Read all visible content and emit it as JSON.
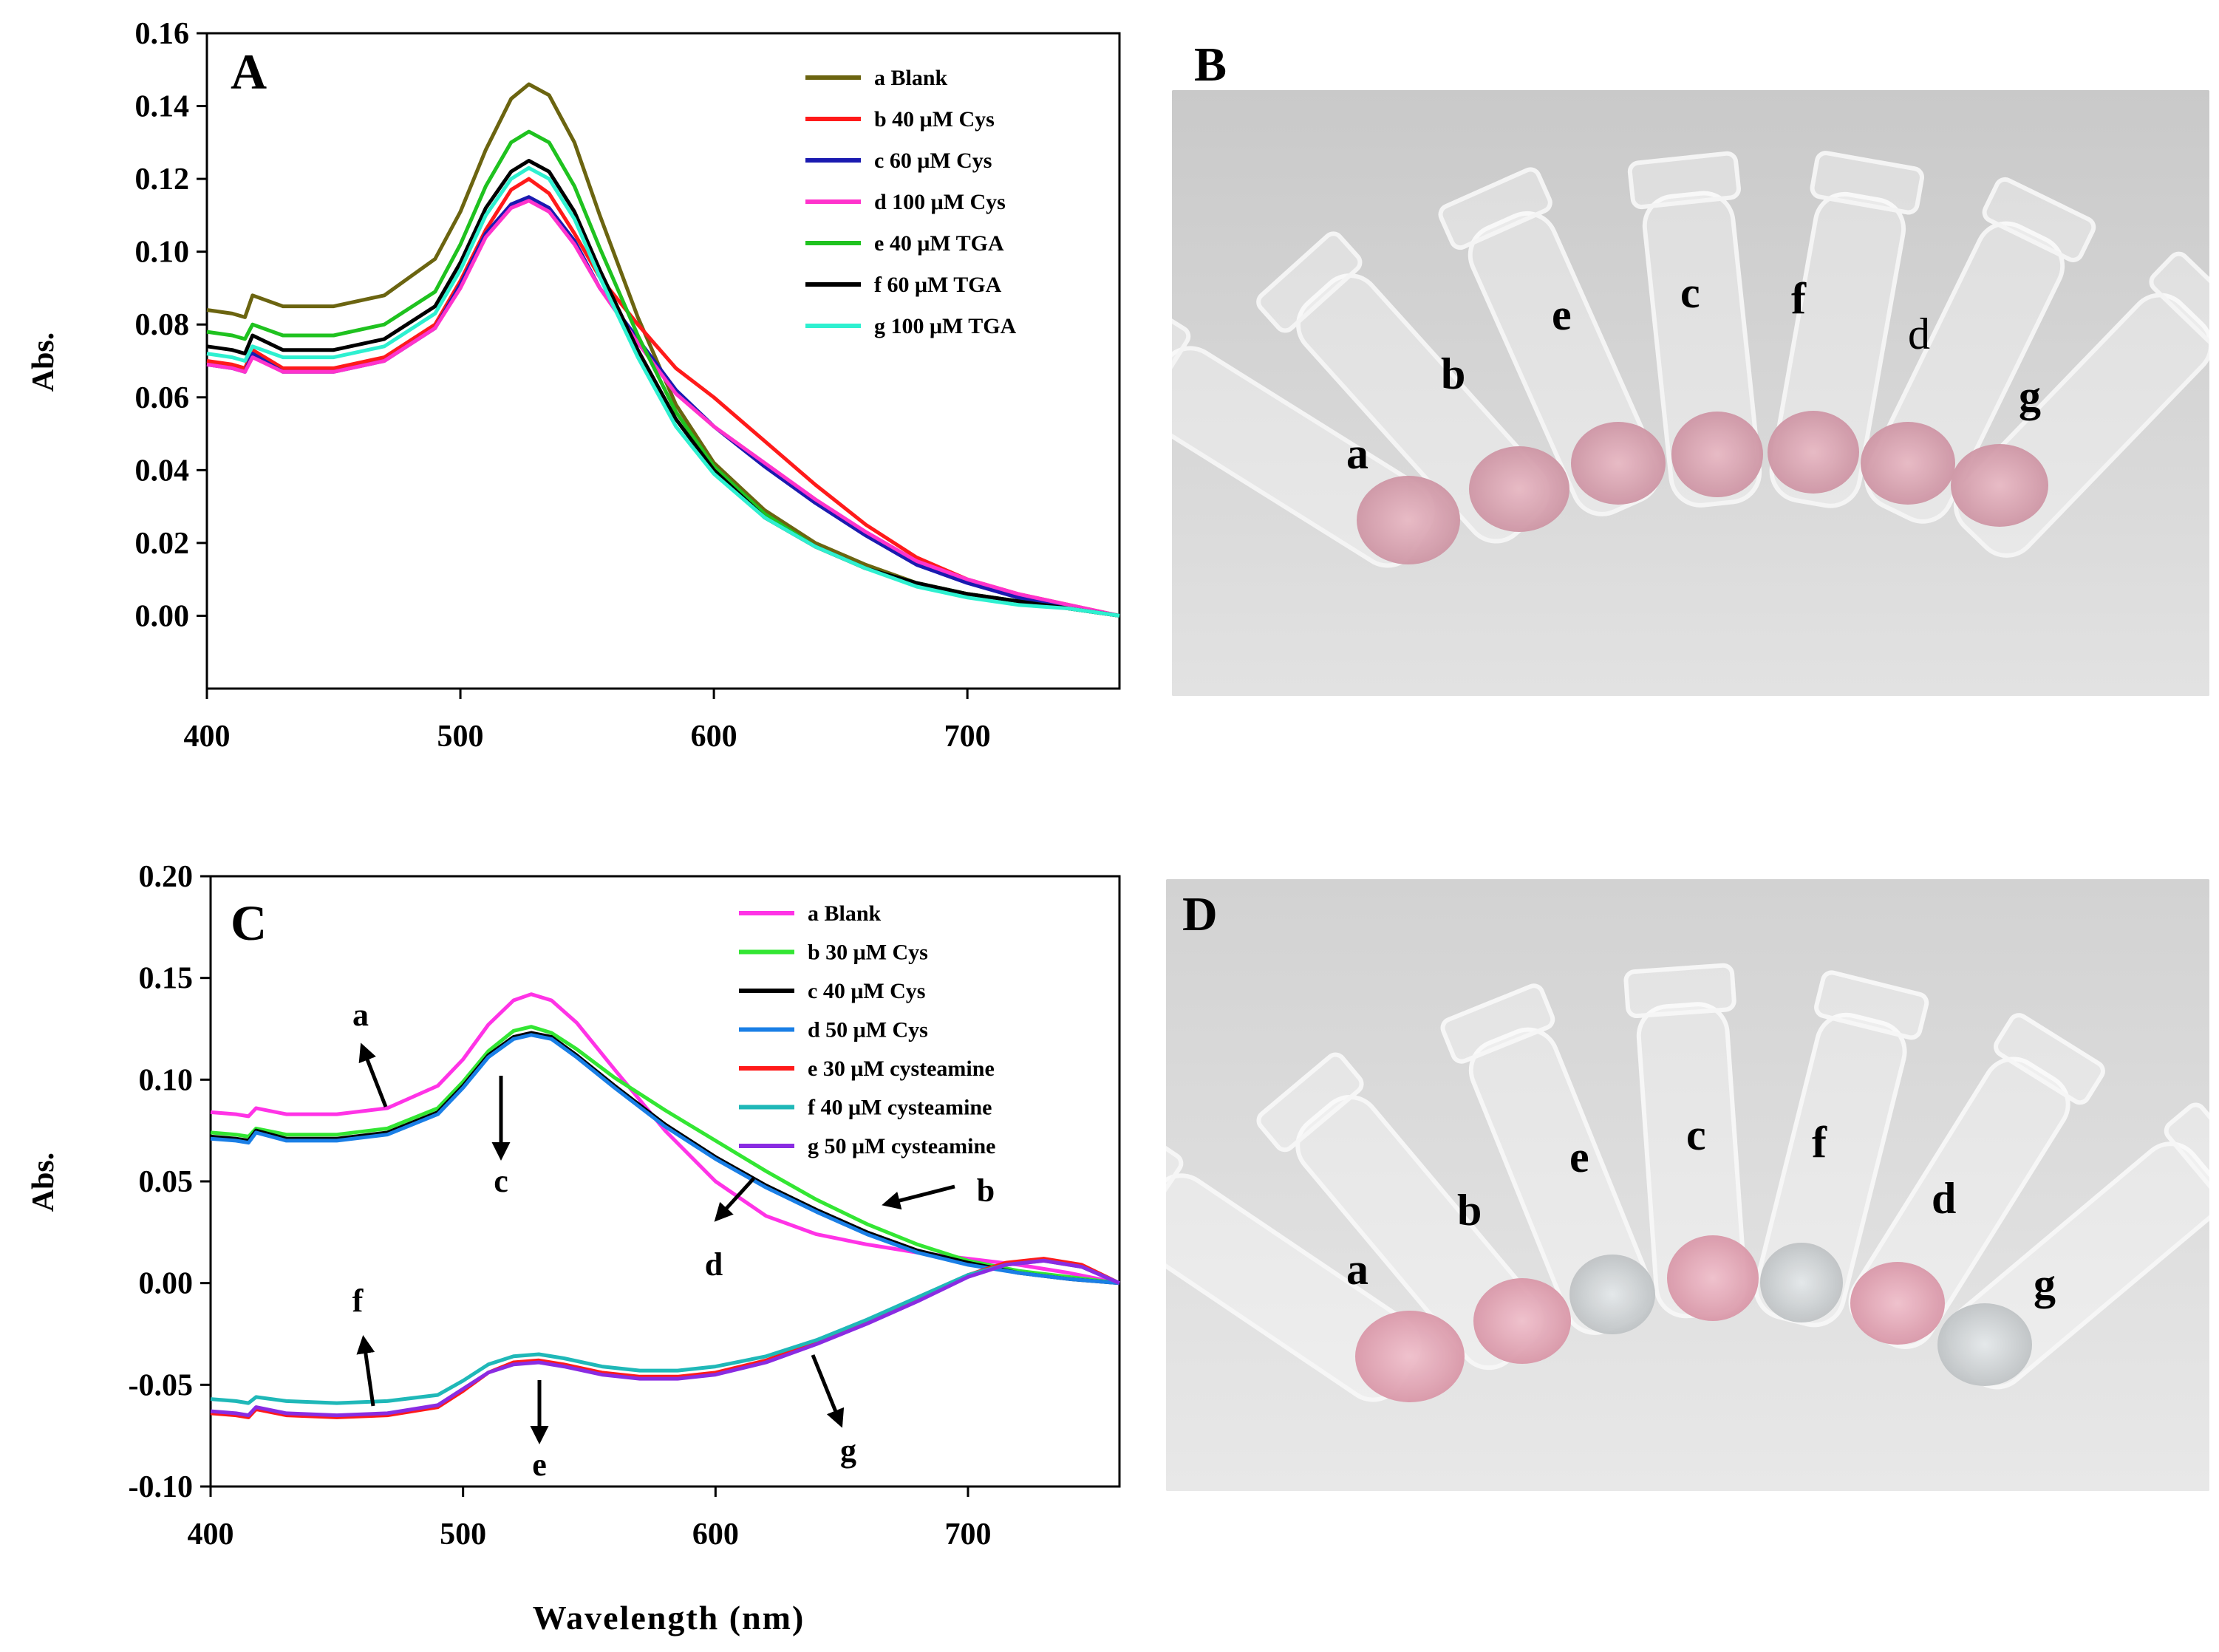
{
  "chart_data": [
    {
      "panel": "A",
      "type": "line",
      "xlabel": "",
      "ylabel": "Abs.",
      "xlim": [
        400,
        760
      ],
      "ylim": [
        -0.02,
        0.16
      ],
      "xticks": [
        400,
        500,
        600,
        700
      ],
      "yticks": [
        0.0,
        0.02,
        0.04,
        0.06,
        0.08,
        0.1,
        0.12,
        0.14,
        0.16
      ],
      "legend": "top-right",
      "series": [
        {
          "name": "a Blank",
          "color": "#6b6410",
          "x": [
            400,
            410,
            415,
            418,
            430,
            450,
            470,
            490,
            500,
            510,
            520,
            527,
            535,
            545,
            555,
            570,
            585,
            600,
            620,
            640,
            660,
            680,
            700,
            720,
            740,
            760
          ],
          "y": [
            0.084,
            0.083,
            0.082,
            0.088,
            0.085,
            0.085,
            0.088,
            0.098,
            0.111,
            0.128,
            0.142,
            0.146,
            0.143,
            0.13,
            0.11,
            0.082,
            0.058,
            0.042,
            0.029,
            0.02,
            0.014,
            0.009,
            0.006,
            0.004,
            0.002,
            0.0
          ]
        },
        {
          "name": "b 40 μM Cys",
          "color": "#ff1a1a",
          "x": [
            400,
            410,
            415,
            418,
            430,
            450,
            470,
            490,
            500,
            510,
            520,
            527,
            535,
            545,
            555,
            570,
            585,
            600,
            620,
            640,
            660,
            680,
            700,
            720,
            740,
            760
          ],
          "y": [
            0.07,
            0.069,
            0.068,
            0.073,
            0.068,
            0.068,
            0.071,
            0.08,
            0.092,
            0.106,
            0.117,
            0.12,
            0.116,
            0.105,
            0.093,
            0.08,
            0.068,
            0.06,
            0.048,
            0.036,
            0.025,
            0.016,
            0.01,
            0.006,
            0.003,
            0.0
          ]
        },
        {
          "name": "c 60 μM Cys",
          "color": "#1a1ab0",
          "x": [
            400,
            410,
            415,
            418,
            430,
            450,
            470,
            490,
            500,
            510,
            520,
            527,
            535,
            545,
            555,
            570,
            585,
            600,
            620,
            640,
            660,
            680,
            700,
            720,
            740,
            760
          ],
          "y": [
            0.069,
            0.068,
            0.067,
            0.072,
            0.067,
            0.067,
            0.07,
            0.079,
            0.091,
            0.105,
            0.113,
            0.115,
            0.112,
            0.103,
            0.09,
            0.076,
            0.062,
            0.052,
            0.041,
            0.031,
            0.022,
            0.014,
            0.009,
            0.005,
            0.002,
            0.0
          ]
        },
        {
          "name": "d 100 μM Cys",
          "color": "#ff33cc",
          "x": [
            400,
            410,
            415,
            418,
            430,
            450,
            470,
            490,
            500,
            510,
            520,
            527,
            535,
            545,
            555,
            570,
            585,
            600,
            620,
            640,
            660,
            680,
            700,
            720,
            740,
            760
          ],
          "y": [
            0.069,
            0.068,
            0.067,
            0.071,
            0.067,
            0.067,
            0.07,
            0.079,
            0.09,
            0.104,
            0.112,
            0.114,
            0.111,
            0.102,
            0.09,
            0.075,
            0.061,
            0.052,
            0.042,
            0.032,
            0.023,
            0.015,
            0.01,
            0.006,
            0.003,
            0.0
          ]
        },
        {
          "name": "e 40 μM TGA",
          "color": "#1fc21f",
          "x": [
            400,
            410,
            415,
            418,
            430,
            450,
            470,
            490,
            500,
            510,
            520,
            527,
            535,
            545,
            555,
            570,
            585,
            600,
            620,
            640,
            660,
            680,
            700,
            720,
            740,
            760
          ],
          "y": [
            0.078,
            0.077,
            0.076,
            0.08,
            0.077,
            0.077,
            0.08,
            0.089,
            0.102,
            0.118,
            0.13,
            0.133,
            0.13,
            0.118,
            0.101,
            0.077,
            0.056,
            0.041,
            0.028,
            0.019,
            0.013,
            0.009,
            0.006,
            0.004,
            0.002,
            0.0
          ]
        },
        {
          "name": "f 60 μM TGA",
          "color": "#000000",
          "x": [
            400,
            410,
            415,
            418,
            430,
            450,
            470,
            490,
            500,
            510,
            520,
            527,
            535,
            545,
            555,
            570,
            585,
            600,
            620,
            640,
            660,
            680,
            700,
            720,
            740,
            760
          ],
          "y": [
            0.074,
            0.073,
            0.072,
            0.077,
            0.073,
            0.073,
            0.076,
            0.085,
            0.097,
            0.112,
            0.122,
            0.125,
            0.122,
            0.111,
            0.095,
            0.073,
            0.054,
            0.04,
            0.027,
            0.019,
            0.013,
            0.009,
            0.006,
            0.004,
            0.002,
            0.0
          ]
        },
        {
          "name": "g 100 μM TGA",
          "color": "#2ef0d0",
          "x": [
            400,
            410,
            415,
            418,
            430,
            450,
            470,
            490,
            500,
            510,
            520,
            527,
            535,
            545,
            555,
            570,
            585,
            600,
            620,
            640,
            660,
            680,
            700,
            720,
            740,
            760
          ],
          "y": [
            0.072,
            0.071,
            0.07,
            0.074,
            0.071,
            0.071,
            0.074,
            0.083,
            0.095,
            0.11,
            0.12,
            0.123,
            0.12,
            0.109,
            0.093,
            0.071,
            0.052,
            0.039,
            0.027,
            0.019,
            0.013,
            0.008,
            0.005,
            0.003,
            0.002,
            0.0
          ]
        }
      ]
    },
    {
      "panel": "C",
      "type": "line",
      "xlabel": "Wavelength (nm)",
      "ylabel": "Abs.",
      "xlim": [
        400,
        760
      ],
      "ylim": [
        -0.1,
        0.2
      ],
      "xticks": [
        400,
        500,
        600,
        700
      ],
      "yticks": [
        -0.1,
        -0.05,
        0.0,
        0.05,
        0.1,
        0.15,
        0.2
      ],
      "legend": "top-right",
      "series": [
        {
          "name": "a Blank",
          "color": "#ff33e6",
          "x": [
            400,
            410,
            415,
            418,
            430,
            450,
            470,
            490,
            500,
            510,
            520,
            527,
            535,
            545,
            560,
            580,
            600,
            620,
            640,
            660,
            680,
            700,
            720,
            740,
            760
          ],
          "y": [
            0.084,
            0.083,
            0.082,
            0.086,
            0.083,
            0.083,
            0.086,
            0.097,
            0.11,
            0.127,
            0.139,
            0.142,
            0.139,
            0.128,
            0.105,
            0.075,
            0.05,
            0.033,
            0.024,
            0.019,
            0.015,
            0.012,
            0.009,
            0.005,
            0.0
          ]
        },
        {
          "name": "b 30 μM Cys",
          "color": "#33e633",
          "x": [
            400,
            410,
            415,
            418,
            430,
            450,
            470,
            490,
            500,
            510,
            520,
            527,
            535,
            545,
            560,
            580,
            600,
            620,
            640,
            660,
            680,
            700,
            720,
            740,
            760
          ],
          "y": [
            0.074,
            0.073,
            0.072,
            0.076,
            0.073,
            0.073,
            0.076,
            0.086,
            0.099,
            0.114,
            0.124,
            0.126,
            0.123,
            0.115,
            0.101,
            0.085,
            0.07,
            0.055,
            0.041,
            0.029,
            0.019,
            0.011,
            0.006,
            0.003,
            0.0
          ]
        },
        {
          "name": "c 40 μM Cys",
          "color": "#000000",
          "x": [
            400,
            410,
            415,
            418,
            430,
            450,
            470,
            490,
            500,
            510,
            520,
            527,
            535,
            545,
            560,
            580,
            600,
            620,
            640,
            660,
            680,
            700,
            720,
            740,
            760
          ],
          "y": [
            0.072,
            0.071,
            0.07,
            0.075,
            0.071,
            0.071,
            0.074,
            0.084,
            0.097,
            0.112,
            0.121,
            0.123,
            0.121,
            0.112,
            0.097,
            0.078,
            0.062,
            0.048,
            0.036,
            0.025,
            0.016,
            0.01,
            0.005,
            0.002,
            0.0
          ]
        },
        {
          "name": "d 50 μM Cys",
          "color": "#1a7fe6",
          "x": [
            400,
            410,
            415,
            418,
            430,
            450,
            470,
            490,
            500,
            510,
            520,
            527,
            535,
            545,
            560,
            580,
            600,
            620,
            640,
            660,
            680,
            700,
            720,
            740,
            760
          ],
          "y": [
            0.071,
            0.07,
            0.069,
            0.074,
            0.07,
            0.07,
            0.073,
            0.083,
            0.096,
            0.111,
            0.12,
            0.122,
            0.12,
            0.111,
            0.096,
            0.077,
            0.061,
            0.047,
            0.035,
            0.024,
            0.015,
            0.009,
            0.005,
            0.002,
            0.0
          ]
        },
        {
          "name": "e 30 μM cysteamine",
          "color": "#ff1a1a",
          "x": [
            400,
            410,
            415,
            418,
            430,
            450,
            470,
            490,
            500,
            510,
            520,
            530,
            540,
            555,
            570,
            585,
            600,
            620,
            640,
            660,
            680,
            700,
            715,
            730,
            745,
            760
          ],
          "y": [
            -0.064,
            -0.065,
            -0.066,
            -0.062,
            -0.065,
            -0.066,
            -0.065,
            -0.061,
            -0.053,
            -0.044,
            -0.039,
            -0.038,
            -0.04,
            -0.044,
            -0.046,
            -0.046,
            -0.044,
            -0.038,
            -0.029,
            -0.019,
            -0.008,
            0.004,
            0.01,
            0.012,
            0.009,
            0.0
          ]
        },
        {
          "name": "f 40 μM cysteamine",
          "color": "#1fb8b8",
          "x": [
            400,
            410,
            415,
            418,
            430,
            450,
            470,
            490,
            500,
            510,
            520,
            530,
            540,
            555,
            570,
            585,
            600,
            620,
            640,
            660,
            680,
            700,
            715,
            730,
            745,
            760
          ],
          "y": [
            -0.057,
            -0.058,
            -0.059,
            -0.056,
            -0.058,
            -0.059,
            -0.058,
            -0.055,
            -0.048,
            -0.04,
            -0.036,
            -0.035,
            -0.037,
            -0.041,
            -0.043,
            -0.043,
            -0.041,
            -0.036,
            -0.028,
            -0.018,
            -0.007,
            0.004,
            0.009,
            0.011,
            0.008,
            0.0
          ]
        },
        {
          "name": "g 50 μM cysteamine",
          "color": "#8a2be2",
          "x": [
            400,
            410,
            415,
            418,
            430,
            450,
            470,
            490,
            500,
            510,
            520,
            530,
            540,
            555,
            570,
            585,
            600,
            620,
            640,
            660,
            680,
            700,
            715,
            730,
            745,
            760
          ],
          "y": [
            -0.063,
            -0.064,
            -0.065,
            -0.061,
            -0.064,
            -0.065,
            -0.064,
            -0.06,
            -0.052,
            -0.044,
            -0.04,
            -0.039,
            -0.041,
            -0.045,
            -0.047,
            -0.047,
            -0.045,
            -0.039,
            -0.03,
            -0.02,
            -0.009,
            0.003,
            0.009,
            0.011,
            0.008,
            0.0
          ]
        }
      ],
      "annotations": [
        "a",
        "c",
        "b",
        "d",
        "f",
        "e",
        "g"
      ]
    }
  ],
  "photos": {
    "B": {
      "panel_label": "B",
      "tube_labels": [
        "a",
        "b",
        "e",
        "c",
        "f",
        "d",
        "g"
      ]
    },
    "D": {
      "panel_label": "D",
      "tube_labels": [
        "a",
        "b",
        "e",
        "c",
        "f",
        "d",
        "g"
      ]
    }
  }
}
